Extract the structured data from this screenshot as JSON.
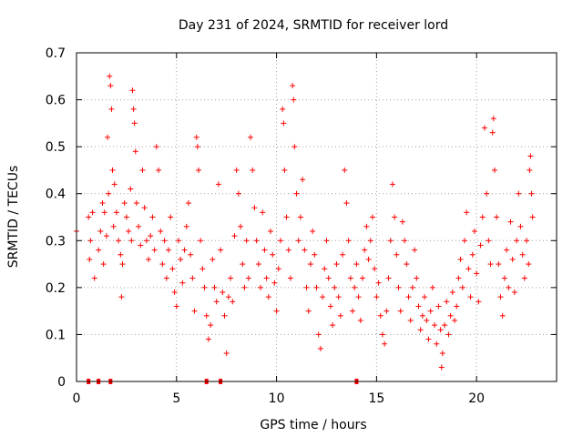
{
  "chart_data": {
    "type": "scatter",
    "title": "Day 231 of 2024, SRMTID for receiver lord",
    "xlabel": "GPS time / hours",
    "ylabel": "SRMTID / TECUs",
    "xlim": [
      0,
      24
    ],
    "ylim": [
      0,
      0.7
    ],
    "x_ticks": [
      0,
      5,
      10,
      15,
      20
    ],
    "x_tick_labels": [
      "0",
      "5",
      "10",
      "15",
      "20"
    ],
    "y_ticks": [
      0,
      0.1,
      0.2,
      0.3,
      0.4,
      0.5,
      0.6,
      0.7
    ],
    "y_tick_labels": [
      "0",
      "0.1",
      "0.2",
      "0.3",
      "0.4",
      "0.5",
      "0.6",
      "0.7"
    ],
    "grid": true,
    "marker": "+",
    "color": "#ff0000",
    "series": [
      {
        "name": "SRMTID",
        "points": [
          [
            0.0,
            0.32
          ],
          [
            0.6,
            0.35
          ],
          [
            0.65,
            0.26
          ],
          [
            0.7,
            0.3
          ],
          [
            0.8,
            0.36
          ],
          [
            0.9,
            0.22
          ],
          [
            1.1,
            0.28
          ],
          [
            1.2,
            0.32
          ],
          [
            1.3,
            0.38
          ],
          [
            1.35,
            0.25
          ],
          [
            1.4,
            0.36
          ],
          [
            1.5,
            0.31
          ],
          [
            1.55,
            0.52
          ],
          [
            1.6,
            0.4
          ],
          [
            1.65,
            0.65
          ],
          [
            1.7,
            0.63
          ],
          [
            1.75,
            0.58
          ],
          [
            1.8,
            0.45
          ],
          [
            1.85,
            0.33
          ],
          [
            1.9,
            0.42
          ],
          [
            2.0,
            0.36
          ],
          [
            2.1,
            0.3
          ],
          [
            2.2,
            0.27
          ],
          [
            2.25,
            0.18
          ],
          [
            2.3,
            0.25
          ],
          [
            2.4,
            0.38
          ],
          [
            2.5,
            0.35
          ],
          [
            2.6,
            0.32
          ],
          [
            2.7,
            0.41
          ],
          [
            2.75,
            0.3
          ],
          [
            2.8,
            0.62
          ],
          [
            2.85,
            0.58
          ],
          [
            2.9,
            0.55
          ],
          [
            2.95,
            0.49
          ],
          [
            3.0,
            0.38
          ],
          [
            3.1,
            0.33
          ],
          [
            3.2,
            0.29
          ],
          [
            3.3,
            0.45
          ],
          [
            3.4,
            0.37
          ],
          [
            3.5,
            0.3
          ],
          [
            3.6,
            0.26
          ],
          [
            3.7,
            0.31
          ],
          [
            3.8,
            0.35
          ],
          [
            3.9,
            0.28
          ],
          [
            4.0,
            0.5
          ],
          [
            4.1,
            0.45
          ],
          [
            4.2,
            0.32
          ],
          [
            4.3,
            0.25
          ],
          [
            4.4,
            0.3
          ],
          [
            4.5,
            0.22
          ],
          [
            4.6,
            0.28
          ],
          [
            4.7,
            0.35
          ],
          [
            4.8,
            0.24
          ],
          [
            4.9,
            0.19
          ],
          [
            5.0,
            0.16
          ],
          [
            5.1,
            0.3
          ],
          [
            5.2,
            0.26
          ],
          [
            5.3,
            0.21
          ],
          [
            5.4,
            0.28
          ],
          [
            5.5,
            0.33
          ],
          [
            5.6,
            0.38
          ],
          [
            5.7,
            0.27
          ],
          [
            5.8,
            0.22
          ],
          [
            5.9,
            0.15
          ],
          [
            6.0,
            0.52
          ],
          [
            6.05,
            0.5
          ],
          [
            6.1,
            0.45
          ],
          [
            6.2,
            0.3
          ],
          [
            6.3,
            0.24
          ],
          [
            6.4,
            0.2
          ],
          [
            6.5,
            0.14
          ],
          [
            6.6,
            0.09
          ],
          [
            6.7,
            0.12
          ],
          [
            6.8,
            0.26
          ],
          [
            6.9,
            0.2
          ],
          [
            7.0,
            0.17
          ],
          [
            7.1,
            0.42
          ],
          [
            7.2,
            0.28
          ],
          [
            7.3,
            0.19
          ],
          [
            7.4,
            0.14
          ],
          [
            7.5,
            0.06
          ],
          [
            7.6,
            0.18
          ],
          [
            7.7,
            0.22
          ],
          [
            7.8,
            0.17
          ],
          [
            7.9,
            0.31
          ],
          [
            8.0,
            0.45
          ],
          [
            8.1,
            0.4
          ],
          [
            8.2,
            0.33
          ],
          [
            8.3,
            0.25
          ],
          [
            8.4,
            0.2
          ],
          [
            8.5,
            0.3
          ],
          [
            8.6,
            0.22
          ],
          [
            8.7,
            0.52
          ],
          [
            8.8,
            0.45
          ],
          [
            8.9,
            0.37
          ],
          [
            9.0,
            0.3
          ],
          [
            9.1,
            0.25
          ],
          [
            9.2,
            0.2
          ],
          [
            9.3,
            0.36
          ],
          [
            9.4,
            0.28
          ],
          [
            9.5,
            0.22
          ],
          [
            9.6,
            0.18
          ],
          [
            9.7,
            0.32
          ],
          [
            9.8,
            0.27
          ],
          [
            9.9,
            0.21
          ],
          [
            10.0,
            0.15
          ],
          [
            10.1,
            0.24
          ],
          [
            10.2,
            0.3
          ],
          [
            10.3,
            0.58
          ],
          [
            10.35,
            0.55
          ],
          [
            10.4,
            0.45
          ],
          [
            10.5,
            0.35
          ],
          [
            10.6,
            0.28
          ],
          [
            10.7,
            0.22
          ],
          [
            10.8,
            0.63
          ],
          [
            10.85,
            0.6
          ],
          [
            10.9,
            0.5
          ],
          [
            11.0,
            0.4
          ],
          [
            11.1,
            0.3
          ],
          [
            11.2,
            0.35
          ],
          [
            11.3,
            0.43
          ],
          [
            11.4,
            0.28
          ],
          [
            11.5,
            0.2
          ],
          [
            11.6,
            0.15
          ],
          [
            11.7,
            0.25
          ],
          [
            11.8,
            0.32
          ],
          [
            11.9,
            0.27
          ],
          [
            12.0,
            0.2
          ],
          [
            12.1,
            0.1
          ],
          [
            12.2,
            0.07
          ],
          [
            12.3,
            0.18
          ],
          [
            12.4,
            0.24
          ],
          [
            12.5,
            0.3
          ],
          [
            12.6,
            0.22
          ],
          [
            12.7,
            0.16
          ],
          [
            12.8,
            0.12
          ],
          [
            12.9,
            0.2
          ],
          [
            13.0,
            0.25
          ],
          [
            13.1,
            0.18
          ],
          [
            13.2,
            0.14
          ],
          [
            13.3,
            0.27
          ],
          [
            13.4,
            0.45
          ],
          [
            13.5,
            0.38
          ],
          [
            13.6,
            0.3
          ],
          [
            13.7,
            0.22
          ],
          [
            13.8,
            0.15
          ],
          [
            13.9,
            0.2
          ],
          [
            14.0,
            0.25
          ],
          [
            14.1,
            0.18
          ],
          [
            14.2,
            0.13
          ],
          [
            14.3,
            0.22
          ],
          [
            14.4,
            0.28
          ],
          [
            14.5,
            0.33
          ],
          [
            14.6,
            0.26
          ],
          [
            14.7,
            0.3
          ],
          [
            14.8,
            0.35
          ],
          [
            14.9,
            0.24
          ],
          [
            15.0,
            0.18
          ],
          [
            15.1,
            0.21
          ],
          [
            15.2,
            0.14
          ],
          [
            15.3,
            0.1
          ],
          [
            15.4,
            0.08
          ],
          [
            15.5,
            0.15
          ],
          [
            15.6,
            0.22
          ],
          [
            15.7,
            0.3
          ],
          [
            15.8,
            0.42
          ],
          [
            15.9,
            0.35
          ],
          [
            16.0,
            0.27
          ],
          [
            16.1,
            0.2
          ],
          [
            16.2,
            0.15
          ],
          [
            16.3,
            0.34
          ],
          [
            16.4,
            0.3
          ],
          [
            16.5,
            0.25
          ],
          [
            16.6,
            0.18
          ],
          [
            16.7,
            0.13
          ],
          [
            16.8,
            0.2
          ],
          [
            16.9,
            0.28
          ],
          [
            17.0,
            0.22
          ],
          [
            17.1,
            0.16
          ],
          [
            17.2,
            0.11
          ],
          [
            17.3,
            0.14
          ],
          [
            17.4,
            0.18
          ],
          [
            17.5,
            0.13
          ],
          [
            17.6,
            0.09
          ],
          [
            17.7,
            0.15
          ],
          [
            17.8,
            0.2
          ],
          [
            17.9,
            0.12
          ],
          [
            18.0,
            0.08
          ],
          [
            18.1,
            0.16
          ],
          [
            18.2,
            0.11
          ],
          [
            18.25,
            0.03
          ],
          [
            18.3,
            0.06
          ],
          [
            18.4,
            0.12
          ],
          [
            18.5,
            0.17
          ],
          [
            18.6,
            0.1
          ],
          [
            18.7,
            0.14
          ],
          [
            18.8,
            0.19
          ],
          [
            18.9,
            0.13
          ],
          [
            19.0,
            0.16
          ],
          [
            19.1,
            0.22
          ],
          [
            19.2,
            0.26
          ],
          [
            19.3,
            0.2
          ],
          [
            19.4,
            0.3
          ],
          [
            19.5,
            0.36
          ],
          [
            19.6,
            0.24
          ],
          [
            19.7,
            0.18
          ],
          [
            19.8,
            0.27
          ],
          [
            19.9,
            0.32
          ],
          [
            20.0,
            0.23
          ],
          [
            20.1,
            0.17
          ],
          [
            20.2,
            0.29
          ],
          [
            20.3,
            0.35
          ],
          [
            20.4,
            0.54
          ],
          [
            20.5,
            0.4
          ],
          [
            20.6,
            0.3
          ],
          [
            20.7,
            0.25
          ],
          [
            20.8,
            0.53
          ],
          [
            20.85,
            0.56
          ],
          [
            20.9,
            0.45
          ],
          [
            21.0,
            0.35
          ],
          [
            21.1,
            0.25
          ],
          [
            21.2,
            0.18
          ],
          [
            21.3,
            0.14
          ],
          [
            21.4,
            0.22
          ],
          [
            21.5,
            0.28
          ],
          [
            21.6,
            0.2
          ],
          [
            21.7,
            0.34
          ],
          [
            21.8,
            0.26
          ],
          [
            21.9,
            0.19
          ],
          [
            22.0,
            0.3
          ],
          [
            22.1,
            0.4
          ],
          [
            22.2,
            0.33
          ],
          [
            22.3,
            0.27
          ],
          [
            22.4,
            0.22
          ],
          [
            22.5,
            0.3
          ],
          [
            22.6,
            0.25
          ],
          [
            22.65,
            0.45
          ],
          [
            22.7,
            0.48
          ],
          [
            22.75,
            0.4
          ],
          [
            22.8,
            0.35
          ]
        ]
      }
    ],
    "zero_markers": [
      0.6,
      1.1,
      1.7,
      6.5,
      7.2,
      14.0
    ]
  }
}
